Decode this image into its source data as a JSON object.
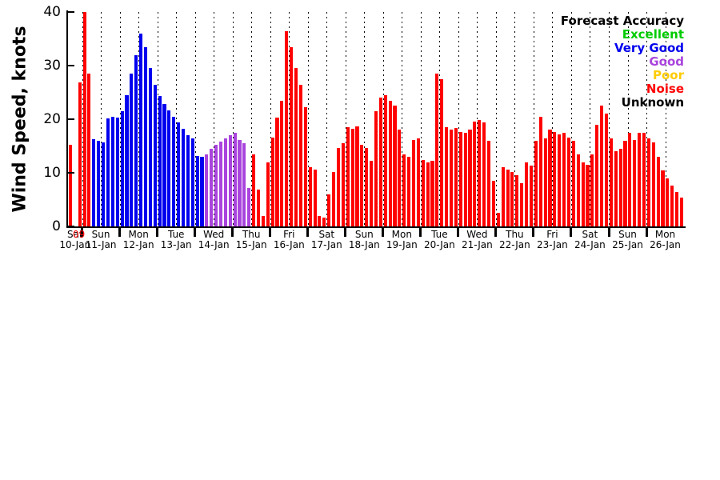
{
  "chart_data": {
    "type": "bar",
    "title": "",
    "ylabel": "Wind Speed, knots",
    "xlabel": "",
    "ylim": [
      0,
      40
    ],
    "yticks": [
      0,
      10,
      20,
      30,
      40
    ],
    "bar_interval_hours": 3,
    "total_hours": 393,
    "grid": {
      "start_hour": 9,
      "step_hours": 12,
      "style": "dotted"
    },
    "legend": {
      "title": "Forecast Accuracy",
      "position": "top-right",
      "entries": [
        {
          "label": "Excellent",
          "key": "excellent",
          "color": "#00cc00"
        },
        {
          "label": "Very Good",
          "key": "very_good",
          "color": "#0000ee"
        },
        {
          "label": "Good",
          "key": "good",
          "color": "#aa44dd"
        },
        {
          "label": "Poor",
          "key": "poor",
          "color": "#ffcc00"
        },
        {
          "label": "Noise",
          "key": "noise",
          "color": "#ff0000"
        },
        {
          "label": "Unknown",
          "key": "unknown",
          "color": "#000000"
        }
      ]
    },
    "colors": {
      "excellent": "#00cc00",
      "very_good": "#0000ee",
      "good": "#aa44dd",
      "poor": "#ffcc00",
      "noise": "#ff0000",
      "unknown": "#000000"
    },
    "code_to_key": {
      "R": "noise",
      "B": "very_good",
      "P": "good",
      "G": "excellent",
      "Y": "poor",
      "K": "unknown"
    },
    "time_marker": {
      "label": "09",
      "hour": 7,
      "color": "#ff0000"
    },
    "days": [
      {
        "weekday": "Sat",
        "date": "10-Jan",
        "start_hour": 0,
        "end_hour": 9
      },
      {
        "weekday": "Sun",
        "date": "11-Jan",
        "start_hour": 9,
        "end_hour": 33
      },
      {
        "weekday": "Mon",
        "date": "12-Jan",
        "start_hour": 33,
        "end_hour": 57
      },
      {
        "weekday": "Tue",
        "date": "13-Jan",
        "start_hour": 57,
        "end_hour": 81
      },
      {
        "weekday": "Wed",
        "date": "14-Jan",
        "start_hour": 81,
        "end_hour": 105
      },
      {
        "weekday": "Thu",
        "date": "15-Jan",
        "start_hour": 105,
        "end_hour": 129
      },
      {
        "weekday": "Fri",
        "date": "16-Jan",
        "start_hour": 129,
        "end_hour": 153
      },
      {
        "weekday": "Sat",
        "date": "17-Jan",
        "start_hour": 153,
        "end_hour": 177
      },
      {
        "weekday": "Sun",
        "date": "18-Jan",
        "start_hour": 177,
        "end_hour": 201
      },
      {
        "weekday": "Mon",
        "date": "19-Jan",
        "start_hour": 201,
        "end_hour": 225
      },
      {
        "weekday": "Tue",
        "date": "20-Jan",
        "start_hour": 225,
        "end_hour": 249
      },
      {
        "weekday": "Wed",
        "date": "21-Jan",
        "start_hour": 249,
        "end_hour": 273
      },
      {
        "weekday": "Thu",
        "date": "22-Jan",
        "start_hour": 273,
        "end_hour": 297
      },
      {
        "weekday": "Fri",
        "date": "23-Jan",
        "start_hour": 297,
        "end_hour": 321
      },
      {
        "weekday": "Sat",
        "date": "24-Jan",
        "start_hour": 321,
        "end_hour": 345
      },
      {
        "weekday": "Sun",
        "date": "25-Jan",
        "start_hour": 345,
        "end_hour": 369
      },
      {
        "weekday": "Mon",
        "date": "26-Jan",
        "start_hour": 369,
        "end_hour": 393
      }
    ],
    "values": [
      15.2,
      0,
      26.8,
      40,
      28.5,
      16.3,
      16.0,
      15.7,
      20.2,
      20.5,
      20.3,
      21.5,
      24.5,
      28.5,
      32.0,
      36.0,
      33.5,
      29.5,
      26.5,
      24.3,
      22.8,
      21.6,
      20.5,
      19.4,
      18.2,
      17.0,
      16.4,
      13.2,
      13.0,
      13.4,
      14.5,
      15.2,
      15.9,
      16.5,
      17.0,
      17.4,
      16.2,
      15.6,
      7.2,
      13.5,
      6.8,
      2.0,
      12.0,
      16.6,
      20.3,
      23.5,
      36.5,
      33.5,
      29.5,
      26.5,
      22.3,
      11.0,
      10.6,
      2.0,
      1.6,
      6.0,
      10.2,
      14.6,
      15.5,
      18.5,
      18.2,
      18.6,
      15.2,
      14.6,
      12.2,
      21.5,
      24.0,
      24.5,
      23.4,
      22.5,
      18.0,
      13.4,
      13.0,
      16.2,
      16.5,
      12.4,
      12.0,
      12.2,
      28.5,
      27.5,
      18.5,
      18.0,
      18.4,
      17.6,
      17.5,
      18.0,
      19.5,
      19.8,
      19.4,
      16.0,
      8.5,
      2.5,
      11.0,
      10.6,
      10.2,
      9.6,
      8.0,
      12.0,
      11.4,
      16.0,
      20.5,
      16.5,
      18.0,
      17.6,
      17.2,
      17.5,
      16.6,
      16.0,
      13.5,
      12.0,
      11.5,
      13.5,
      19.0,
      22.5,
      21.0,
      16.5,
      14.0,
      14.5,
      16.0,
      17.5,
      16.2,
      17.5,
      17.4,
      16.4,
      15.7,
      13.0,
      10.5,
      9.0,
      7.6,
      6.4,
      5.4
    ],
    "bar_color_codes": "RRRRRBBBBBBBBBBBBBBBBBBBBBBBBPPPPPPPPPPRRRRRRRRRRRRRRRRRRRRRRRRRRRRRRRRRRRRRRRRRRRRRRRRRRRRRRRRRRRRRRRRRRRRRRRRRRRRRRRRRRRRRRRRRRR"
  }
}
